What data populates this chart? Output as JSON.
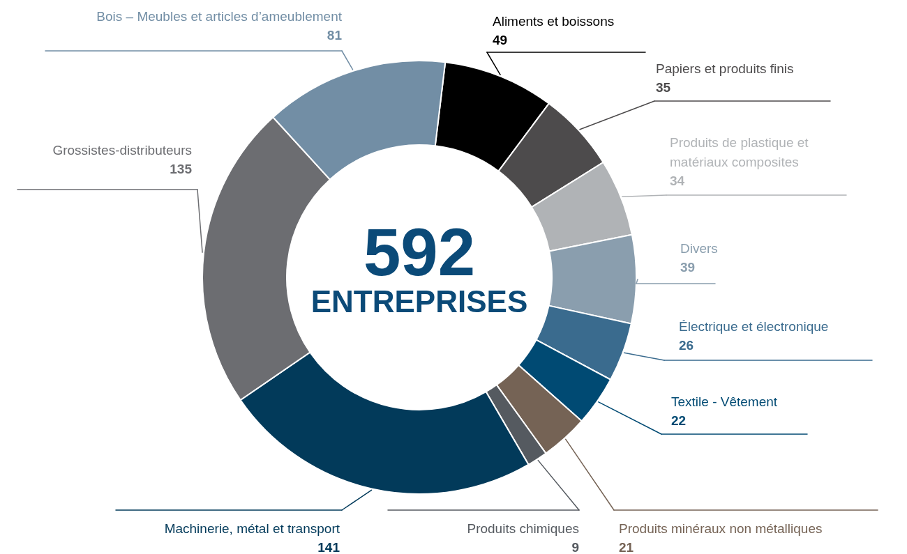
{
  "chart_data": {
    "type": "donut",
    "categories": [
      "Aliments et boissons",
      "Papiers et produits finis",
      "Produits de plastique et matériaux composites",
      "Divers",
      "Électrique et électronique",
      "Textile - Vêtement",
      "Produits minéraux non métalliques",
      "Produits chimiques",
      "Machinerie, métal et transport",
      "Grossistes-distributeurs",
      "Bois – Meubles et articles d’ameublement"
    ],
    "values": [
      49,
      35,
      34,
      39,
      26,
      22,
      21,
      9,
      141,
      135,
      81
    ],
    "colors": [
      "#000000",
      "#4d4b4c",
      "#b0b3b6",
      "#8a9eae",
      "#3a6b8e",
      "#004a73",
      "#756355",
      "#555a60",
      "#023a5a",
      "#6c6d71",
      "#728ea5"
    ],
    "data_labels": true,
    "annotations": [
      "592",
      "ENTREPRISES"
    ]
  }
}
